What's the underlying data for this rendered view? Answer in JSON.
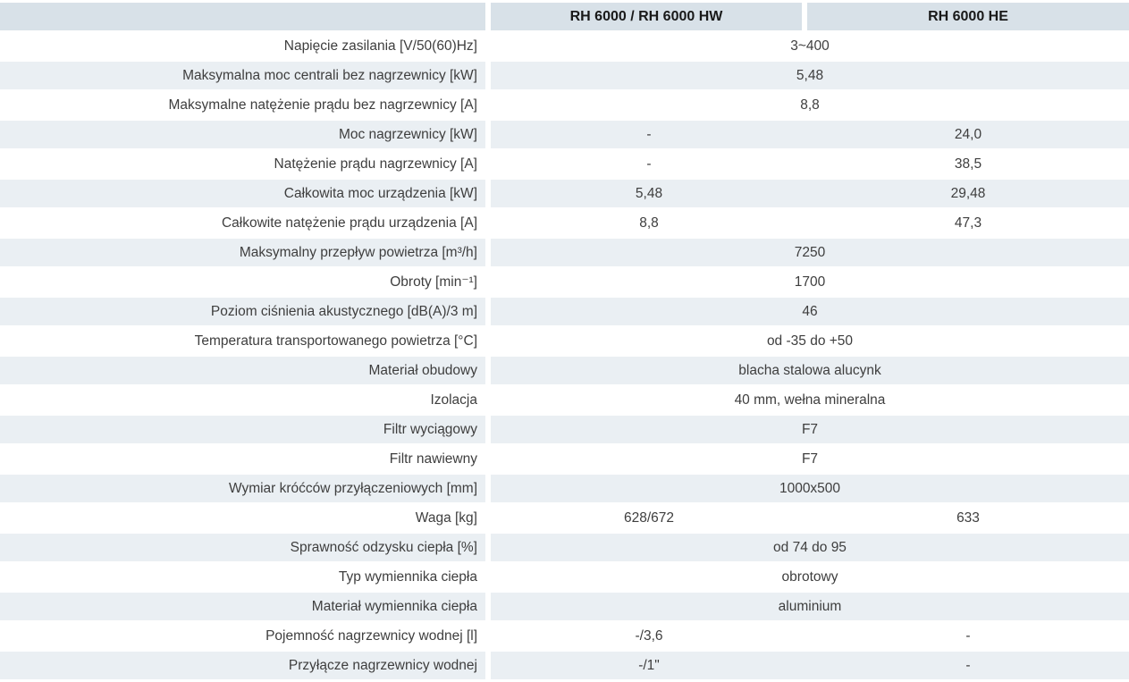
{
  "table": {
    "columns": [
      "",
      "RH 6000 / RH 6000 HW",
      "RH 6000 HE"
    ],
    "rows": [
      {
        "label": "Napięcie zasilania [V/50(60)Hz]",
        "span": "3~400"
      },
      {
        "label": "Maksymalna moc centrali bez nagrzewnicy [kW]",
        "span": "5,48"
      },
      {
        "label": "Maksymalne natężenie prądu bez nagrzewnicy [A]",
        "span": "8,8"
      },
      {
        "label": "Moc nagrzewnicy [kW]",
        "col1": "-",
        "col2": "24,0"
      },
      {
        "label": "Natężenie prądu nagrzewnicy [A]",
        "col1": "-",
        "col2": "38,5"
      },
      {
        "label": "Całkowita moc urządzenia [kW]",
        "col1": "5,48",
        "col2": "29,48"
      },
      {
        "label": "Całkowite natężenie prądu urządzenia [A]",
        "col1": "8,8",
        "col2": "47,3"
      },
      {
        "label": "Maksymalny przepływ powietrza [m³/h]",
        "span": "7250"
      },
      {
        "label": "Obroty [min⁻¹]",
        "span": "1700"
      },
      {
        "label": "Poziom ciśnienia akustycznego [dB(A)/3 m]",
        "span": "46"
      },
      {
        "label": "Temperatura transportowanego powietrza [°C]",
        "span": "od -35 do +50"
      },
      {
        "label": "Materiał obudowy",
        "span": "blacha stalowa alucynk"
      },
      {
        "label": "Izolacja",
        "span": "40 mm, wełna mineralna"
      },
      {
        "label": "Filtr wyciągowy",
        "span": "F7"
      },
      {
        "label": "Filtr nawiewny",
        "span": "F7"
      },
      {
        "label": "Wymiar króćców przyłączeniowych [mm]",
        "span": "1000x500"
      },
      {
        "label": "Waga [kg]",
        "col1": "628/672",
        "col2": "633"
      },
      {
        "label": "Sprawność odzysku ciepła [%]",
        "span": "od 74 do 95"
      },
      {
        "label": "Typ wymiennika ciepła",
        "span": "obrotowy"
      },
      {
        "label": "Materiał wymiennika ciepła",
        "span": "aluminium"
      },
      {
        "label": "Pojemność nagrzewnicy wodnej [l]",
        "col1": "-/3,6",
        "col2": "-"
      },
      {
        "label": "Przyłącze nagrzewnicy wodnej",
        "col1": "-/1\"",
        "col2": "-"
      }
    ],
    "colors": {
      "header_bg": "#d8e1e8",
      "stripe_bg": "#eaeff3",
      "text": "#3e3e3e",
      "header_text": "#191919"
    }
  }
}
